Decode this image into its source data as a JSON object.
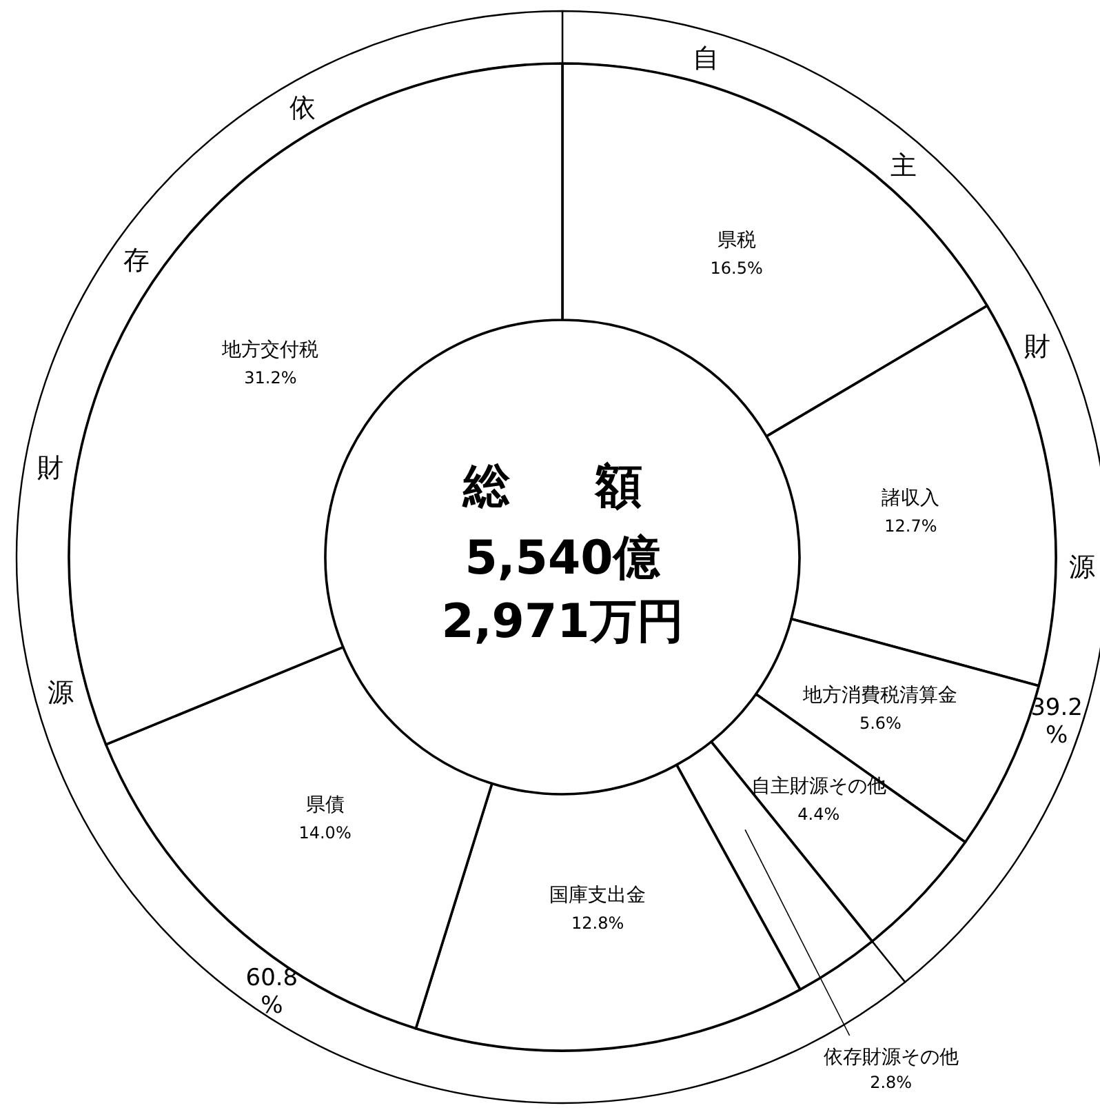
{
  "chart_data": [
    {
      "type": "donut",
      "title": "総　額",
      "annotations": [
        "5,540億",
        "2,971万円"
      ],
      "categories": [
        "県税",
        "諸収入",
        "地方消費税清算金",
        "自主財源その他",
        "依存財源その他",
        "国庫支出金",
        "県債",
        "地方交付税"
      ],
      "values": [
        16.5,
        12.7,
        5.6,
        4.4,
        2.8,
        12.8,
        14.0,
        31.2
      ],
      "value_labels": [
        "16.5%",
        "12.7%",
        "5.6%",
        "4.4%",
        "2.8%",
        "12.8%",
        "14.0%",
        "31.2%"
      ],
      "colors": [
        "#ffffff",
        "#ffffff",
        "#ffffff",
        "#ffffff",
        "#ffffff",
        "#ffffff",
        "#ffffff",
        "#ffffff"
      ]
    },
    {
      "type": "donut",
      "categories": [
        "自主財源",
        "依存財源"
      ],
      "values": [
        39.2,
        60.8
      ],
      "value_labels": [
        "39.2%",
        "60.8%"
      ],
      "colors": [
        "#ffffff",
        "#ffffff"
      ]
    }
  ]
}
